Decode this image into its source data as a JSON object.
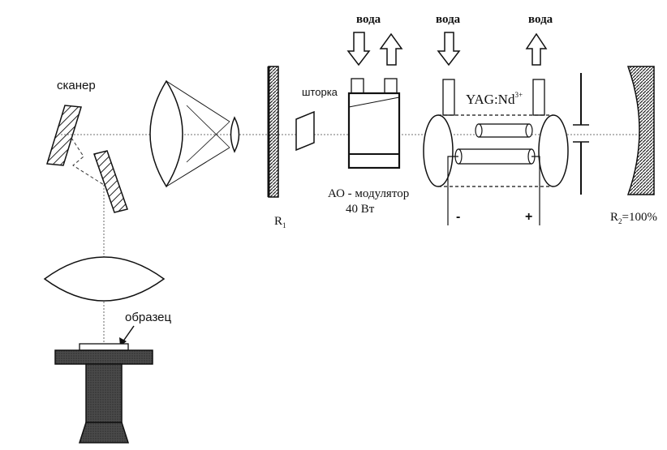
{
  "labels": {
    "scanner": "сканер",
    "shutter": "шторка",
    "water_1": "вода",
    "water_2": "вода",
    "water_3": "вода",
    "ao_modulator": "АО - модулятор",
    "ao_power": "40 Вт",
    "crystal": "YAG:Nd",
    "crystal_sup": "3+",
    "minus": "-",
    "plus": "+",
    "r1_main": "R",
    "r1_sub": "1",
    "r2_main": "R",
    "r2_sub": "2",
    "r2_rest": "=100%",
    "sample": "образец"
  },
  "colors": {
    "ink": "#111111",
    "hatch": "#333333",
    "stage": "#3a3a3a"
  }
}
